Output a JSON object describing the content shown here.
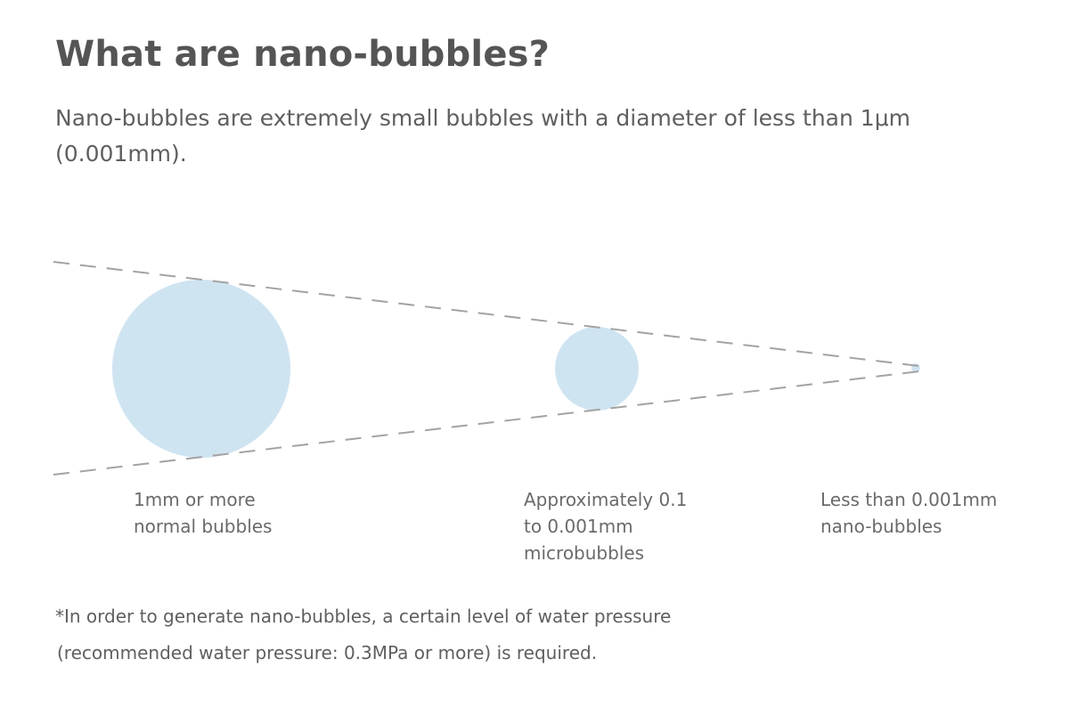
{
  "heading": "What are nano-bubbles?",
  "intro": "Nano-bubbles are extremely small bubbles with a diameter of less than 1μm (0.001mm).",
  "bubbles": [
    {
      "id": "normal",
      "size_line": "1mm or more",
      "size_line_2": "",
      "name": "normal bubbles"
    },
    {
      "id": "micro",
      "size_line": "Approximately 0.1",
      "size_line_2": "to 0.001mm",
      "name": "microbubbles"
    },
    {
      "id": "nano",
      "size_line": "Less than 0.001mm",
      "size_line_2": "",
      "name": "nano-bubbles"
    }
  ],
  "note": {
    "line1": "*In order to generate nano-bubbles, a certain level of water pressure",
    "line2": "(recommended water pressure: 0.3MPa or more) is required."
  },
  "colors": {
    "bubble_fill": "#cfe4f1",
    "dash_line": "#a3a3a3",
    "text": "#5f5f5f"
  }
}
